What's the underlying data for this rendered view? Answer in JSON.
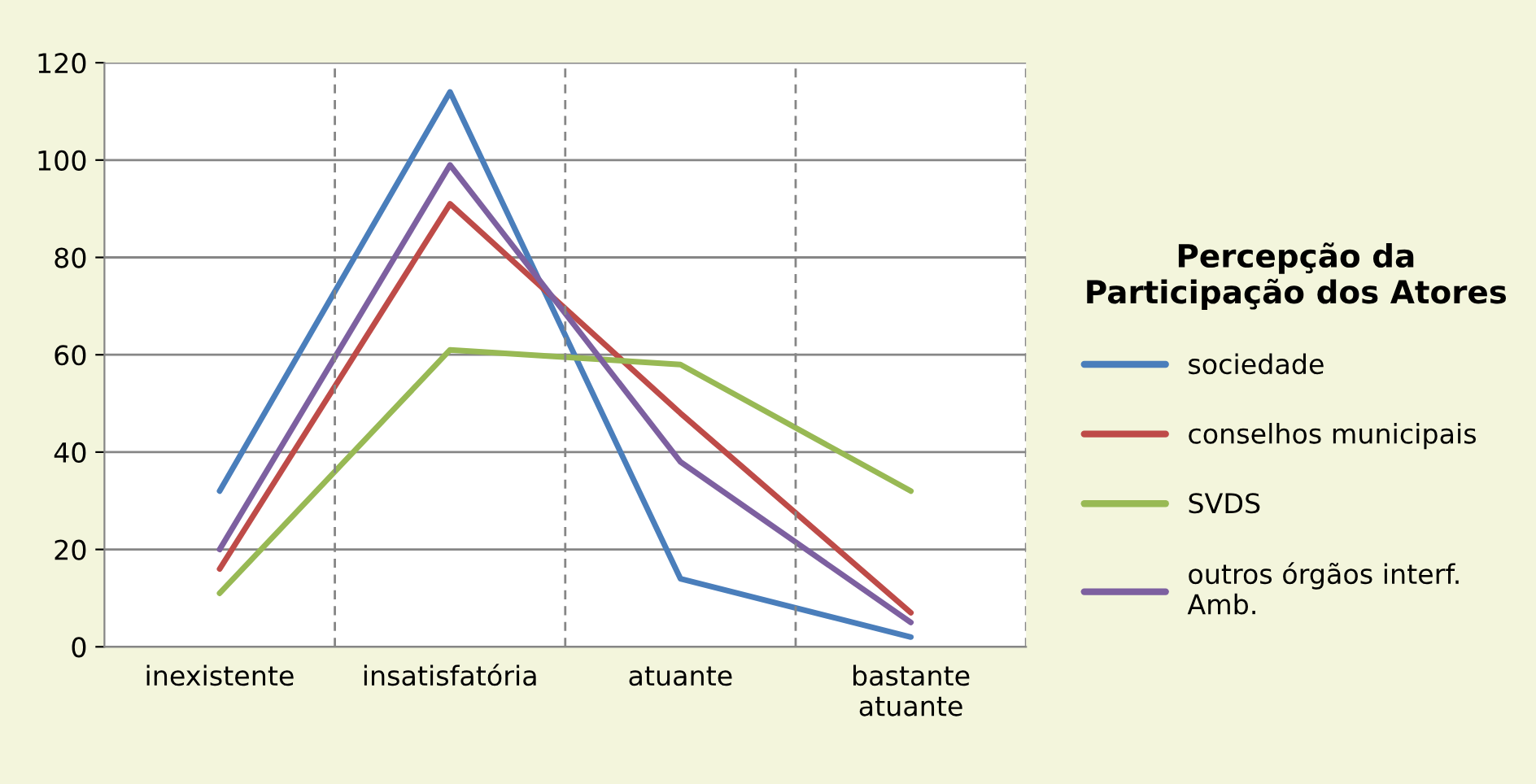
{
  "chart_data": {
    "type": "line",
    "legend_title": "Percepção da\nParticipação dos Atores",
    "categories": [
      "inexistente",
      "insatisfatória",
      "atuante",
      "bastante\natuante"
    ],
    "series": [
      {
        "name": "sociedade",
        "color": "#4a7ebb",
        "values": [
          32,
          114,
          14,
          2
        ]
      },
      {
        "name": "conselhos municipais",
        "color": "#be4b48",
        "values": [
          16,
          91,
          48,
          7
        ]
      },
      {
        "name": "SVDS",
        "color": "#98b954",
        "values": [
          11,
          61,
          58,
          32
        ]
      },
      {
        "name": "outros órgãos interf.\nAmb.",
        "color": "#7d60a0",
        "values": [
          20,
          99,
          38,
          5
        ]
      }
    ],
    "ylim": [
      0,
      120
    ],
    "yticks": [
      0,
      20,
      40,
      60,
      80,
      100,
      120
    ],
    "grid": true,
    "legend": "right",
    "marker": "none",
    "line_style": "solid"
  }
}
